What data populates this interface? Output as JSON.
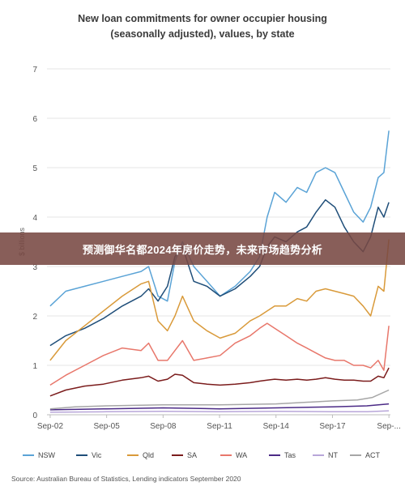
{
  "banner_text": "预测御华名都2024年房价走势，未来市场趋势分析",
  "source_text": "Source: Australian Bureau of Statistics, Lending indicators September 2020",
  "chart_data": {
    "type": "line",
    "title_line1": "New loan commitments for owner occupier housing",
    "title_line2": "(seasonally adjusted), values, by state",
    "ylabel": "$ billions",
    "ylim": [
      0,
      7
    ],
    "yticks": [
      "0",
      "1",
      "2",
      "3",
      "4",
      "5",
      "6",
      "7"
    ],
    "x_tick_labels": [
      "Sep-02",
      "Sep-05",
      "Sep-08",
      "Sep-11",
      "Sep-14",
      "Sep-17",
      "Sep-..."
    ],
    "x_tick_years": [
      2002.67,
      2005.67,
      2008.67,
      2011.67,
      2014.67,
      2017.67,
      2020.67
    ],
    "xlim": [
      2002.5,
      2020.75
    ],
    "grid": true,
    "legend_position": "bottom",
    "series": [
      {
        "name": "NSW",
        "color": "#5aa3d6",
        "x": [
          2002.67,
          2003.5,
          2004.5,
          2005.5,
          2006.5,
          2007.5,
          2007.9,
          2008.4,
          2008.9,
          2009.3,
          2009.7,
          2010.3,
          2011.0,
          2011.7,
          2012.5,
          2013.3,
          2013.8,
          2014.2,
          2014.6,
          2015.2,
          2015.8,
          2016.3,
          2016.8,
          2017.3,
          2017.8,
          2018.3,
          2018.8,
          2019.3,
          2019.7,
          2020.1,
          2020.4,
          2020.67
        ],
        "y": [
          2.2,
          2.5,
          2.6,
          2.7,
          2.8,
          2.9,
          3.0,
          2.4,
          2.3,
          3.1,
          3.5,
          3.0,
          2.7,
          2.4,
          2.6,
          2.9,
          3.2,
          4.0,
          4.5,
          4.3,
          4.6,
          4.5,
          4.9,
          5.0,
          4.9,
          4.5,
          4.1,
          3.9,
          4.2,
          4.8,
          4.9,
          5.75
        ]
      },
      {
        "name": "Vic",
        "color": "#1f4e79",
        "x": [
          2002.67,
          2003.5,
          2004.5,
          2005.5,
          2006.5,
          2007.5,
          2007.9,
          2008.4,
          2008.9,
          2009.3,
          2009.7,
          2010.3,
          2011.0,
          2011.7,
          2012.5,
          2013.3,
          2013.8,
          2014.2,
          2014.6,
          2015.2,
          2015.8,
          2016.3,
          2016.8,
          2017.3,
          2017.8,
          2018.3,
          2018.8,
          2019.3,
          2019.7,
          2020.1,
          2020.4,
          2020.67
        ],
        "y": [
          1.4,
          1.6,
          1.75,
          1.95,
          2.2,
          2.4,
          2.55,
          2.3,
          2.6,
          3.2,
          3.4,
          2.7,
          2.6,
          2.4,
          2.55,
          2.8,
          3.0,
          3.4,
          3.6,
          3.5,
          3.7,
          3.8,
          4.1,
          4.35,
          4.2,
          3.8,
          3.5,
          3.3,
          3.6,
          4.2,
          4.0,
          4.3
        ]
      },
      {
        "name": "Qld",
        "color": "#d99a3a",
        "x": [
          2002.67,
          2003.5,
          2004.5,
          2005.5,
          2006.5,
          2007.5,
          2007.9,
          2008.4,
          2008.9,
          2009.3,
          2009.7,
          2010.3,
          2011.0,
          2011.7,
          2012.5,
          2013.3,
          2013.8,
          2014.2,
          2014.6,
          2015.2,
          2015.8,
          2016.3,
          2016.8,
          2017.3,
          2017.8,
          2018.3,
          2018.8,
          2019.3,
          2019.7,
          2020.1,
          2020.4,
          2020.67
        ],
        "y": [
          1.1,
          1.5,
          1.8,
          2.1,
          2.4,
          2.65,
          2.7,
          1.9,
          1.7,
          2.0,
          2.4,
          1.9,
          1.7,
          1.55,
          1.65,
          1.9,
          2.0,
          2.1,
          2.2,
          2.2,
          2.35,
          2.3,
          2.5,
          2.55,
          2.5,
          2.45,
          2.4,
          2.2,
          2.0,
          2.6,
          2.5,
          3.55
        ]
      },
      {
        "name": "SA",
        "color": "#7b1c1c",
        "x": [
          2002.67,
          2003.5,
          2004.5,
          2005.5,
          2006.5,
          2007.5,
          2007.9,
          2008.4,
          2008.9,
          2009.3,
          2009.7,
          2010.3,
          2011.0,
          2011.7,
          2012.5,
          2013.3,
          2013.8,
          2014.2,
          2014.6,
          2015.2,
          2015.8,
          2016.3,
          2016.8,
          2017.3,
          2017.8,
          2018.3,
          2018.8,
          2019.3,
          2019.7,
          2020.1,
          2020.4,
          2020.67
        ],
        "y": [
          0.38,
          0.5,
          0.58,
          0.62,
          0.7,
          0.75,
          0.78,
          0.68,
          0.72,
          0.82,
          0.8,
          0.65,
          0.62,
          0.6,
          0.62,
          0.65,
          0.68,
          0.7,
          0.72,
          0.7,
          0.72,
          0.7,
          0.72,
          0.75,
          0.72,
          0.7,
          0.7,
          0.68,
          0.68,
          0.78,
          0.75,
          0.95
        ]
      },
      {
        "name": "WA",
        "color": "#e8776b",
        "x": [
          2002.67,
          2003.5,
          2004.5,
          2005.5,
          2006.5,
          2007.5,
          2007.9,
          2008.4,
          2008.9,
          2009.3,
          2009.7,
          2010.3,
          2011.0,
          2011.7,
          2012.5,
          2013.3,
          2013.8,
          2014.2,
          2014.6,
          2015.2,
          2015.8,
          2016.3,
          2016.8,
          2017.3,
          2017.8,
          2018.3,
          2018.8,
          2019.3,
          2019.7,
          2020.1,
          2020.4,
          2020.67
        ],
        "y": [
          0.6,
          0.8,
          1.0,
          1.2,
          1.35,
          1.3,
          1.45,
          1.1,
          1.1,
          1.3,
          1.5,
          1.1,
          1.15,
          1.2,
          1.45,
          1.6,
          1.75,
          1.85,
          1.75,
          1.6,
          1.45,
          1.35,
          1.25,
          1.15,
          1.1,
          1.1,
          1.0,
          1.0,
          0.95,
          1.1,
          0.9,
          1.8
        ]
      },
      {
        "name": "Tas",
        "color": "#4b2a86",
        "x": [
          2002.67,
          2005.67,
          2008.67,
          2011.67,
          2014.67,
          2017.67,
          2019.5,
          2020.67
        ],
        "y": [
          0.1,
          0.12,
          0.14,
          0.12,
          0.14,
          0.16,
          0.18,
          0.22
        ]
      },
      {
        "name": "NT",
        "color": "#b8a6d9",
        "x": [
          2002.67,
          2005.67,
          2008.67,
          2011.67,
          2014.67,
          2017.67,
          2019.5,
          2020.67
        ],
        "y": [
          0.05,
          0.06,
          0.07,
          0.06,
          0.07,
          0.06,
          0.06,
          0.08
        ]
      },
      {
        "name": "ACT",
        "color": "#a6a6a6",
        "x": [
          2002.67,
          2004.0,
          2005.67,
          2008.67,
          2011.67,
          2014.67,
          2017.67,
          2019.0,
          2019.8,
          2020.67
        ],
        "y": [
          0.12,
          0.16,
          0.18,
          0.2,
          0.2,
          0.22,
          0.28,
          0.3,
          0.35,
          0.5
        ]
      }
    ]
  }
}
